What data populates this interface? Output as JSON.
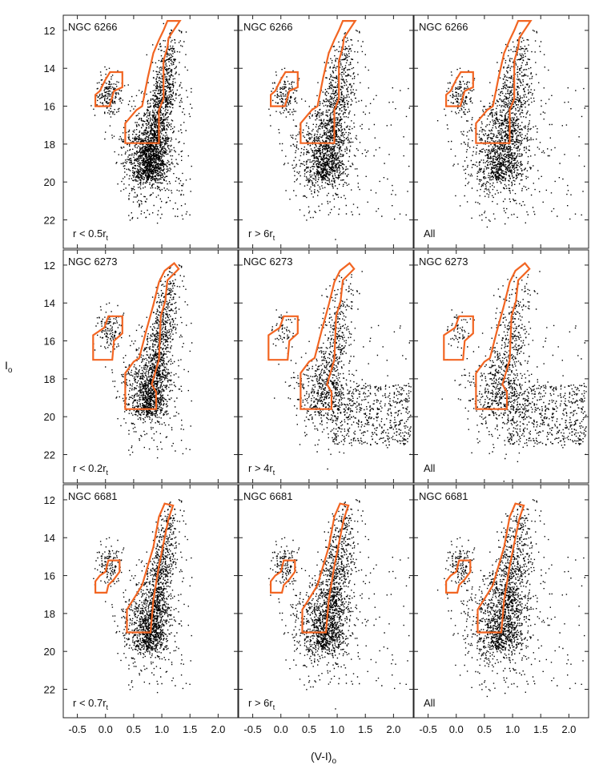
{
  "figure": {
    "ylabel_main": "I",
    "ylabel_sub": "o",
    "xlabel_main": "(V-I)",
    "xlabel_sub": "o",
    "colors": {
      "cmd_box": "#f26522",
      "stars": "#000000",
      "frame": "#222222"
    }
  },
  "chart_data": {
    "type": "scatter",
    "layout": "3x3 grid of color-magnitude diagrams",
    "xlabel": "(V-I)o",
    "ylabel": "Io",
    "xlim": [
      -0.75,
      2.35
    ],
    "ylim": [
      11.2,
      23.5
    ],
    "y_inverted": true,
    "xticks": [
      -0.5,
      0.0,
      0.5,
      1.0,
      1.5,
      2.0
    ],
    "xtick_labels": [
      "-0.5",
      "0.0",
      "0.5",
      "1.0",
      "1.5",
      "2.0"
    ],
    "yticks": [
      12,
      14,
      16,
      18,
      20,
      22
    ],
    "ytick_labels": [
      "12",
      "14",
      "16",
      "18",
      "20",
      "22"
    ],
    "rows": [
      {
        "cluster": "NGC 6266",
        "panels": [
          {
            "label_main": "r < 0.5r",
            "label_sub": "t",
            "density": "low",
            "n": 2600
          },
          {
            "label_main": "r > 6r",
            "label_sub": "t",
            "density": "medium",
            "n": 5200
          },
          {
            "label_main": "All",
            "label_sub": "",
            "density": "high",
            "n": 8000
          }
        ],
        "rgb_box": [
          [
            0.35,
            17.95
          ],
          [
            0.95,
            17.95
          ],
          [
            0.95,
            16.2
          ],
          [
            1.03,
            15.6
          ],
          [
            1.03,
            13.6
          ],
          [
            1.1,
            12.9
          ],
          [
            1.12,
            12.4
          ],
          [
            1.32,
            11.5
          ],
          [
            1.1,
            11.5
          ],
          [
            1.03,
            12.0
          ],
          [
            0.95,
            12.5
          ],
          [
            0.85,
            13.2
          ],
          [
            0.75,
            14.5
          ],
          [
            0.65,
            16.0
          ],
          [
            0.55,
            16.2
          ],
          [
            0.35,
            16.9
          ],
          [
            0.35,
            17.95
          ]
        ],
        "hb_box": [
          [
            -0.18,
            16.0
          ],
          [
            0.07,
            16.0
          ],
          [
            0.15,
            15.2
          ],
          [
            0.3,
            15.0
          ],
          [
            0.3,
            14.2
          ],
          [
            0.08,
            14.2
          ],
          [
            0.0,
            14.6
          ],
          [
            -0.1,
            15.2
          ],
          [
            -0.18,
            15.4
          ],
          [
            -0.18,
            16.0
          ]
        ]
      },
      {
        "cluster": "NGC 6273",
        "panels": [
          {
            "label_main": "r < 0.2r",
            "label_sub": "t",
            "density": "low",
            "n": 2800
          },
          {
            "label_main": "r > 4r",
            "label_sub": "t",
            "density": "medium",
            "n": 6500
          },
          {
            "label_main": "All",
            "label_sub": "",
            "density": "high",
            "n": 9500
          }
        ],
        "rgb_box": [
          [
            0.35,
            19.6
          ],
          [
            0.9,
            19.6
          ],
          [
            0.9,
            18.7
          ],
          [
            0.82,
            18.3
          ],
          [
            0.95,
            17.0
          ],
          [
            0.98,
            14.7
          ],
          [
            1.06,
            13.9
          ],
          [
            1.1,
            12.8
          ],
          [
            1.3,
            12.2
          ],
          [
            1.22,
            11.9
          ],
          [
            1.05,
            12.3
          ],
          [
            0.95,
            12.9
          ],
          [
            0.85,
            14.1
          ],
          [
            0.72,
            15.5
          ],
          [
            0.6,
            16.9
          ],
          [
            0.5,
            17.1
          ],
          [
            0.35,
            17.7
          ],
          [
            0.35,
            19.6
          ]
        ],
        "hb_box": [
          [
            -0.22,
            17.0
          ],
          [
            0.12,
            17.0
          ],
          [
            0.15,
            16.0
          ],
          [
            0.3,
            15.6
          ],
          [
            0.3,
            14.7
          ],
          [
            0.05,
            14.7
          ],
          [
            -0.02,
            15.3
          ],
          [
            -0.22,
            15.7
          ],
          [
            -0.22,
            17.0
          ]
        ]
      },
      {
        "cluster": "NGC 6681",
        "panels": [
          {
            "label_main": "r < 0.7r",
            "label_sub": "t",
            "density": "low",
            "n": 2400
          },
          {
            "label_main": "r > 6r",
            "label_sub": "t",
            "density": "medium",
            "n": 5500
          },
          {
            "label_main": "All",
            "label_sub": "",
            "density": "medium",
            "n": 6500
          }
        ],
        "rgb_box": [
          [
            0.38,
            19.0
          ],
          [
            0.8,
            19.0
          ],
          [
            0.85,
            17.3
          ],
          [
            0.95,
            15.5
          ],
          [
            1.05,
            14.0
          ],
          [
            1.12,
            13.0
          ],
          [
            1.2,
            12.3
          ],
          [
            1.05,
            12.2
          ],
          [
            0.95,
            12.9
          ],
          [
            0.85,
            14.5
          ],
          [
            0.75,
            15.5
          ],
          [
            0.65,
            16.5
          ],
          [
            0.55,
            17.0
          ],
          [
            0.38,
            17.8
          ],
          [
            0.38,
            19.0
          ]
        ],
        "hb_box": [
          [
            -0.18,
            16.9
          ],
          [
            0.02,
            16.9
          ],
          [
            0.05,
            16.5
          ],
          [
            0.15,
            16.2
          ],
          [
            0.25,
            15.8
          ],
          [
            0.25,
            15.2
          ],
          [
            0.05,
            15.2
          ],
          [
            0.0,
            15.8
          ],
          [
            -0.1,
            16.0
          ],
          [
            -0.18,
            16.3
          ],
          [
            -0.18,
            16.9
          ]
        ]
      }
    ]
  }
}
